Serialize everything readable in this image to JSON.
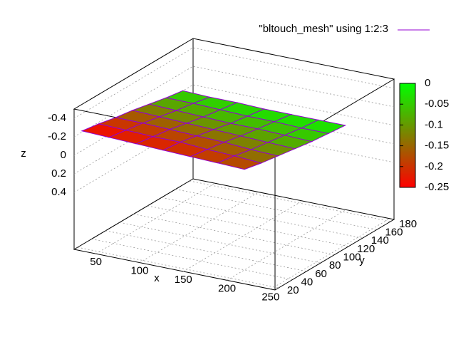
{
  "chart_data": {
    "type": "surface",
    "xlabel": "x",
    "ylabel": "y",
    "zlabel": "z",
    "xlim": [
      25,
      255
    ],
    "xticks": [
      50,
      100,
      150,
      200,
      250
    ],
    "ylim": [
      15,
      185
    ],
    "yticks": [
      20,
      40,
      60,
      80,
      100,
      120,
      140,
      160,
      180
    ],
    "zlim": [
      -0.5,
      0.5
    ],
    "zreverse": true,
    "zticks": [
      -0.4,
      -0.2,
      0,
      0.2,
      0.4
    ],
    "cblim": [
      -0.25,
      0
    ],
    "cbticks": [
      0,
      -0.05,
      -0.1,
      -0.15,
      -0.2,
      -0.25
    ],
    "palette": [
      "#ff0000",
      "#00ff00"
    ],
    "grid": true,
    "series": [
      {
        "name": "\"bltouch_mesh\" using 1:2:3",
        "color": "#9400d3",
        "x": [
          30,
          61,
          92,
          123,
          154,
          185,
          216
        ],
        "y": [
          20,
          44,
          68,
          92,
          116,
          140,
          164
        ],
        "z": [
          [
            -0.25,
            -0.24,
            -0.23,
            -0.22,
            -0.21,
            -0.2,
            -0.19
          ],
          [
            -0.22,
            -0.21,
            -0.2,
            -0.2,
            -0.18,
            -0.17,
            -0.15
          ],
          [
            -0.18,
            -0.18,
            -0.17,
            -0.16,
            -0.15,
            -0.13,
            -0.12
          ],
          [
            -0.15,
            -0.14,
            -0.13,
            -0.12,
            -0.11,
            -0.1,
            -0.09
          ],
          [
            -0.11,
            -0.1,
            -0.09,
            -0.08,
            -0.08,
            -0.07,
            -0.06
          ],
          [
            -0.07,
            -0.07,
            -0.06,
            -0.05,
            -0.05,
            -0.04,
            -0.04
          ],
          [
            -0.04,
            -0.03,
            -0.03,
            -0.02,
            -0.02,
            -0.02,
            -0.02
          ]
        ]
      }
    ]
  }
}
